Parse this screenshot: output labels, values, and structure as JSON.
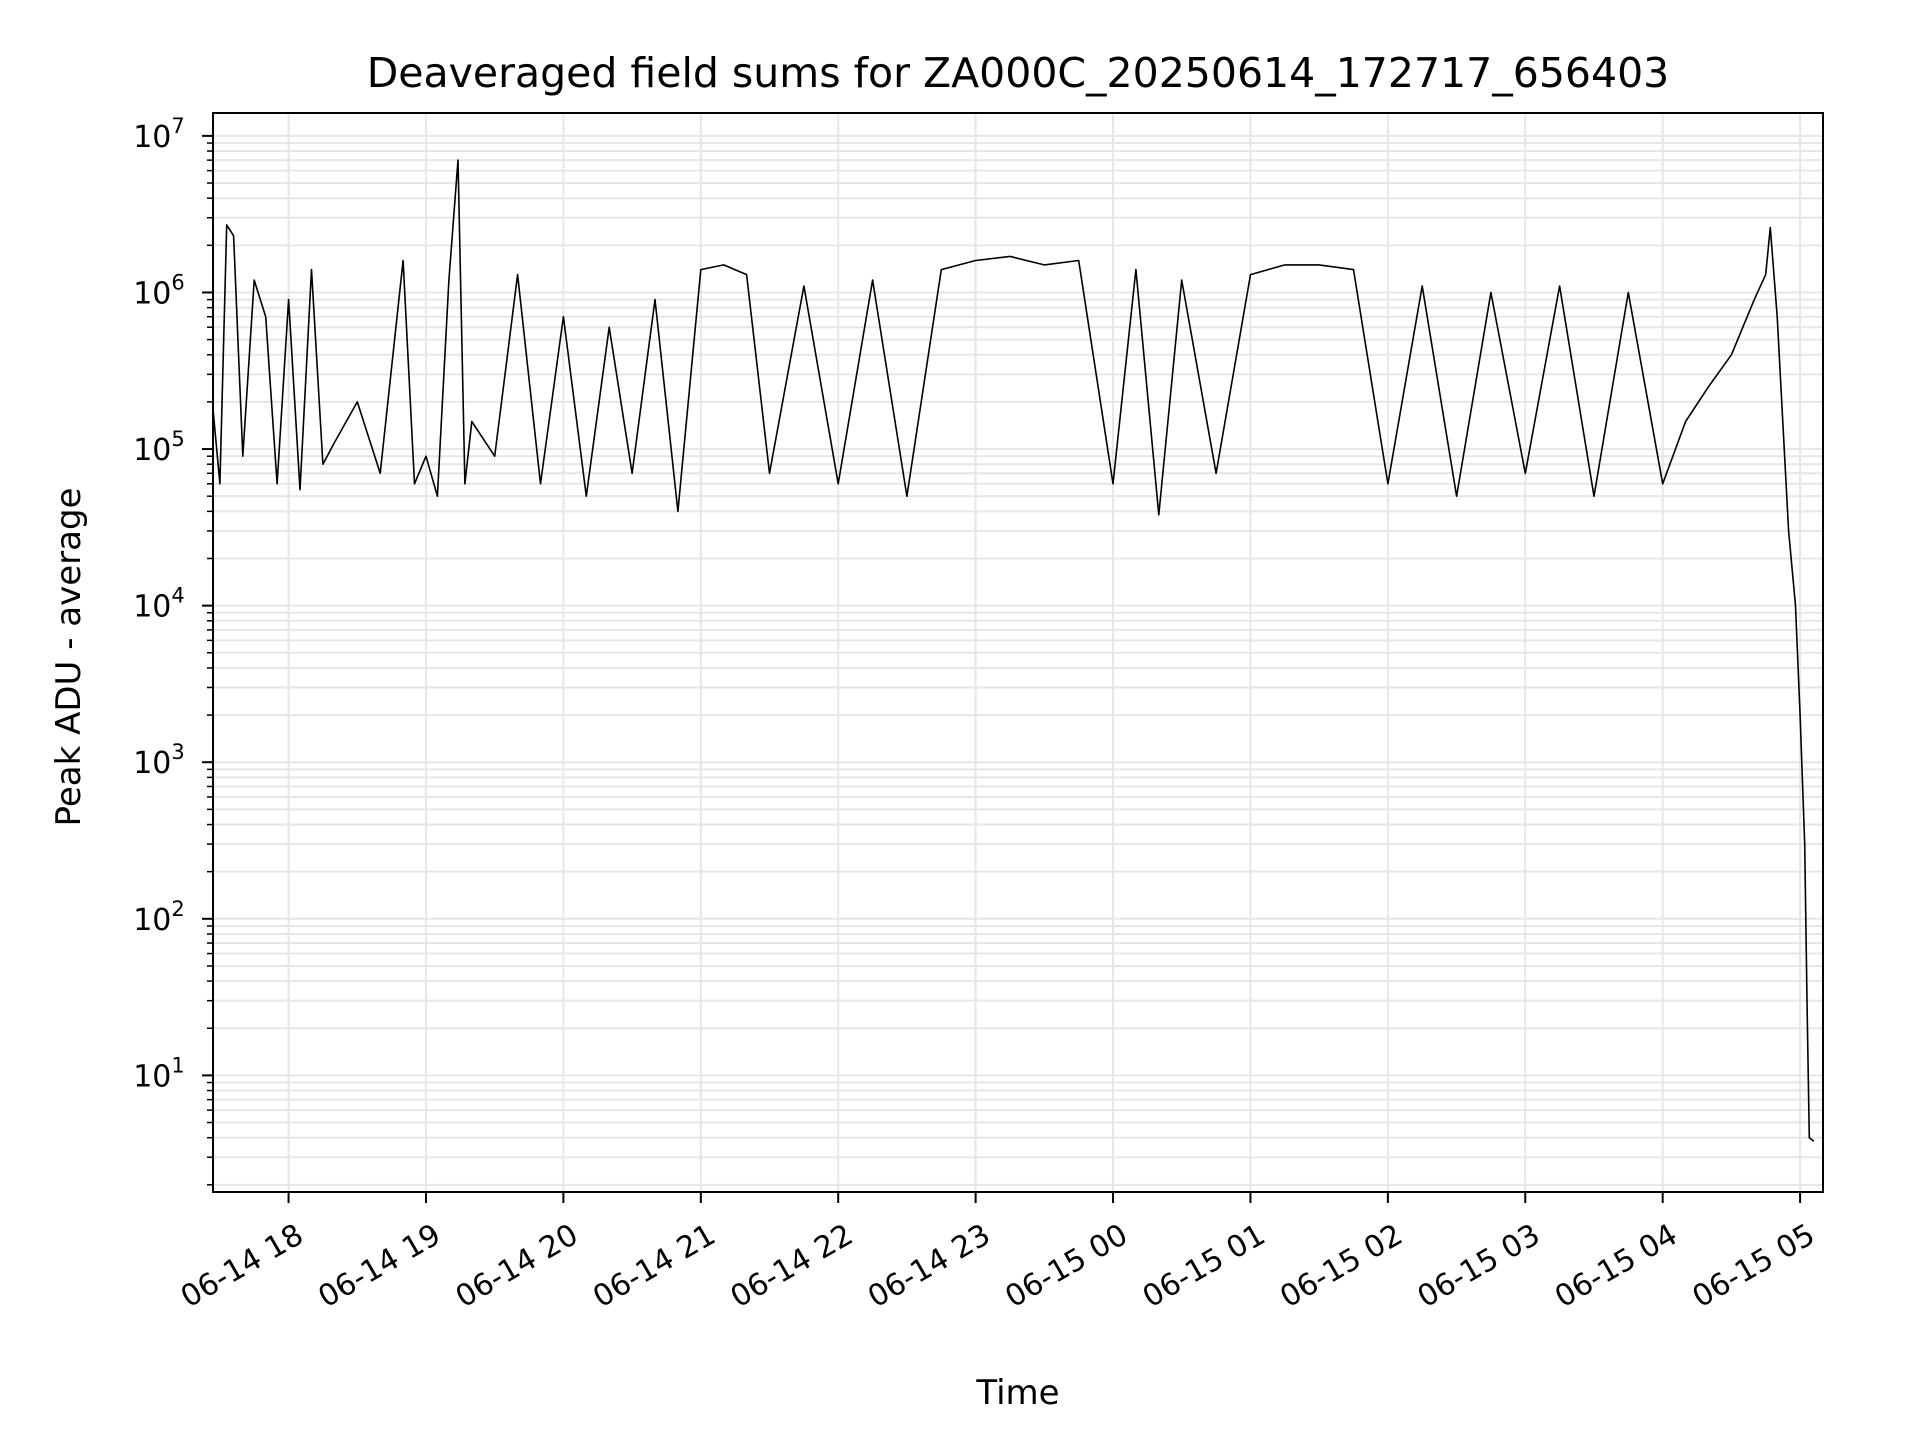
{
  "chart_data": {
    "type": "line",
    "title": "Deaveraged field sums for ZA000C_20250614_172717_656403",
    "xlabel": "Time",
    "ylabel": "Peak ADU - average",
    "yscale": "log",
    "ylim": [
      1.8,
      14000000
    ],
    "xlim": [
      "2025-06-14 17:27",
      "2025-06-15 05:10"
    ],
    "grid": true,
    "x_ticks": [
      {
        "value": "2025-06-14 18:00",
        "label": "06-14 18"
      },
      {
        "value": "2025-06-14 19:00",
        "label": "06-14 19"
      },
      {
        "value": "2025-06-14 20:00",
        "label": "06-14 20"
      },
      {
        "value": "2025-06-14 21:00",
        "label": "06-14 21"
      },
      {
        "value": "2025-06-14 22:00",
        "label": "06-14 22"
      },
      {
        "value": "2025-06-14 23:00",
        "label": "06-14 23"
      },
      {
        "value": "2025-06-15 00:00",
        "label": "06-15 00"
      },
      {
        "value": "2025-06-15 01:00",
        "label": "06-15 01"
      },
      {
        "value": "2025-06-15 02:00",
        "label": "06-15 02"
      },
      {
        "value": "2025-06-15 03:00",
        "label": "06-15 03"
      },
      {
        "value": "2025-06-15 04:00",
        "label": "06-15 04"
      },
      {
        "value": "2025-06-15 05:00",
        "label": "06-15 05"
      }
    ],
    "y_ticks": [
      {
        "value": 10,
        "base": "10",
        "exp": "1"
      },
      {
        "value": 100,
        "base": "10",
        "exp": "2"
      },
      {
        "value": 1000,
        "base": "10",
        "exp": "3"
      },
      {
        "value": 10000,
        "base": "10",
        "exp": "4"
      },
      {
        "value": 100000,
        "base": "10",
        "exp": "5"
      },
      {
        "value": 1000000,
        "base": "10",
        "exp": "6"
      },
      {
        "value": 10000000,
        "base": "10",
        "exp": "7"
      }
    ],
    "series": [
      {
        "color": "#000000",
        "points": [
          [
            "2025-06-14 17:27",
            180000
          ],
          [
            "2025-06-14 17:30",
            60000
          ],
          [
            "2025-06-14 17:33",
            2700000
          ],
          [
            "2025-06-14 17:36",
            2300000
          ],
          [
            "2025-06-14 17:40",
            90000
          ],
          [
            "2025-06-14 17:45",
            1200000
          ],
          [
            "2025-06-14 17:50",
            700000
          ],
          [
            "2025-06-14 17:55",
            60000
          ],
          [
            "2025-06-14 18:00",
            900000
          ],
          [
            "2025-06-14 18:05",
            55000
          ],
          [
            "2025-06-14 18:10",
            1400000
          ],
          [
            "2025-06-14 18:15",
            80000
          ],
          [
            "2025-06-14 18:20",
            110000
          ],
          [
            "2025-06-14 18:30",
            200000
          ],
          [
            "2025-06-14 18:40",
            70000
          ],
          [
            "2025-06-14 18:50",
            1600000
          ],
          [
            "2025-06-14 18:55",
            60000
          ],
          [
            "2025-06-14 19:00",
            90000
          ],
          [
            "2025-06-14 19:05",
            50000
          ],
          [
            "2025-06-14 19:10",
            1200000
          ],
          [
            "2025-06-14 19:14",
            7000000
          ],
          [
            "2025-06-14 19:17",
            60000
          ],
          [
            "2025-06-14 19:20",
            150000
          ],
          [
            "2025-06-14 19:30",
            90000
          ],
          [
            "2025-06-14 19:40",
            1300000
          ],
          [
            "2025-06-14 19:50",
            60000
          ],
          [
            "2025-06-14 20:00",
            700000
          ],
          [
            "2025-06-14 20:10",
            50000
          ],
          [
            "2025-06-14 20:20",
            600000
          ],
          [
            "2025-06-14 20:30",
            70000
          ],
          [
            "2025-06-14 20:40",
            900000
          ],
          [
            "2025-06-14 20:50",
            40000
          ],
          [
            "2025-06-14 21:00",
            1400000
          ],
          [
            "2025-06-14 21:10",
            1500000
          ],
          [
            "2025-06-14 21:20",
            1300000
          ],
          [
            "2025-06-14 21:30",
            70000
          ],
          [
            "2025-06-14 21:45",
            1100000
          ],
          [
            "2025-06-14 22:00",
            60000
          ],
          [
            "2025-06-14 22:15",
            1200000
          ],
          [
            "2025-06-14 22:30",
            50000
          ],
          [
            "2025-06-14 22:45",
            1400000
          ],
          [
            "2025-06-14 23:00",
            1600000
          ],
          [
            "2025-06-14 23:15",
            1700000
          ],
          [
            "2025-06-14 23:30",
            1500000
          ],
          [
            "2025-06-14 23:45",
            1600000
          ],
          [
            "2025-06-15 00:00",
            60000
          ],
          [
            "2025-06-15 00:10",
            1400000
          ],
          [
            "2025-06-15 00:20",
            38000
          ],
          [
            "2025-06-15 00:30",
            1200000
          ],
          [
            "2025-06-15 00:45",
            70000
          ],
          [
            "2025-06-15 01:00",
            1300000
          ],
          [
            "2025-06-15 01:15",
            1500000
          ],
          [
            "2025-06-15 01:30",
            1500000
          ],
          [
            "2025-06-15 01:45",
            1400000
          ],
          [
            "2025-06-15 02:00",
            60000
          ],
          [
            "2025-06-15 02:15",
            1100000
          ],
          [
            "2025-06-15 02:30",
            50000
          ],
          [
            "2025-06-15 02:45",
            1000000
          ],
          [
            "2025-06-15 03:00",
            70000
          ],
          [
            "2025-06-15 03:15",
            1100000
          ],
          [
            "2025-06-15 03:30",
            50000
          ],
          [
            "2025-06-15 03:45",
            1000000
          ],
          [
            "2025-06-15 04:00",
            60000
          ],
          [
            "2025-06-15 04:10",
            150000
          ],
          [
            "2025-06-15 04:20",
            250000
          ],
          [
            "2025-06-15 04:30",
            400000
          ],
          [
            "2025-06-15 04:40",
            900000
          ],
          [
            "2025-06-15 04:45",
            1300000
          ],
          [
            "2025-06-15 04:47",
            2600000
          ],
          [
            "2025-06-15 04:50",
            700000
          ],
          [
            "2025-06-15 04:55",
            30000
          ],
          [
            "2025-06-15 04:58",
            10000
          ],
          [
            "2025-06-15 05:00",
            2000
          ],
          [
            "2025-06-15 05:02",
            300
          ],
          [
            "2025-06-15 05:03",
            30
          ],
          [
            "2025-06-15 05:04",
            4
          ],
          [
            "2025-06-15 05:06",
            3.8
          ]
        ]
      }
    ]
  }
}
